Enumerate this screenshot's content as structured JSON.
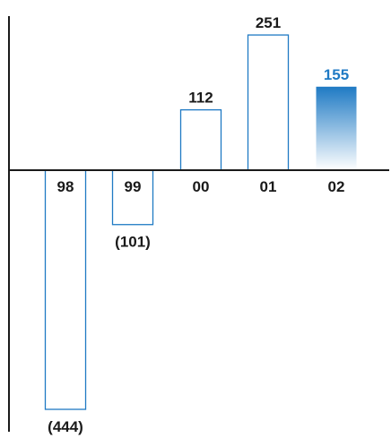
{
  "chart_data": {
    "type": "bar",
    "title": "",
    "xlabel": "",
    "ylabel": "",
    "categories": [
      "98",
      "99",
      "00",
      "01",
      "02"
    ],
    "values": [
      -444,
      -101,
      112,
      251,
      155
    ],
    "value_labels": [
      "(444)",
      "(101)",
      "112",
      "251",
      "155"
    ],
    "highlight_index": 4,
    "grid": false,
    "colors": {
      "bar_stroke": "#1f7ac4",
      "highlight_fill_top": "#1f7ac4",
      "highlight_fill_bottom": "#ffffff",
      "highlight_label": "#1f7ac4",
      "text": "#1a1a1a",
      "axis": "#1a1a1a"
    }
  }
}
